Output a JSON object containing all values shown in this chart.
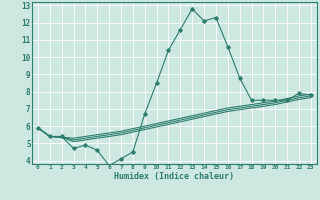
{
  "xlabel": "Humidex (Indice chaleur)",
  "ylabel": "",
  "bg_color": "#cde8e0",
  "grid_color": "#ffffff",
  "line_color": "#2e7d6e",
  "xlim": [
    -0.5,
    23.5
  ],
  "ylim": [
    3.8,
    13.2
  ],
  "xticks": [
    0,
    1,
    2,
    3,
    4,
    5,
    6,
    7,
    8,
    9,
    10,
    11,
    12,
    13,
    14,
    15,
    16,
    17,
    18,
    19,
    20,
    21,
    22,
    23
  ],
  "yticks": [
    4,
    5,
    6,
    7,
    8,
    9,
    10,
    11,
    12,
    13
  ],
  "series": [
    [
      5.9,
      5.4,
      5.4,
      4.7,
      4.9,
      4.6,
      3.7,
      4.1,
      4.5,
      6.7,
      8.5,
      10.4,
      11.6,
      12.8,
      12.1,
      12.3,
      10.6,
      8.8,
      7.5,
      7.5,
      7.5,
      7.5,
      7.9,
      7.8
    ],
    [
      5.9,
      5.4,
      5.35,
      5.2,
      5.3,
      5.4,
      5.5,
      5.6,
      5.75,
      5.9,
      6.05,
      6.2,
      6.35,
      6.5,
      6.65,
      6.8,
      6.95,
      7.05,
      7.15,
      7.25,
      7.35,
      7.5,
      7.65,
      7.75
    ],
    [
      5.9,
      5.4,
      5.35,
      5.1,
      5.2,
      5.3,
      5.4,
      5.5,
      5.65,
      5.8,
      5.95,
      6.1,
      6.25,
      6.4,
      6.55,
      6.7,
      6.85,
      6.95,
      7.05,
      7.15,
      7.25,
      7.4,
      7.55,
      7.65
    ],
    [
      5.9,
      5.4,
      5.35,
      5.3,
      5.4,
      5.5,
      5.6,
      5.7,
      5.85,
      6.0,
      6.15,
      6.3,
      6.45,
      6.6,
      6.75,
      6.9,
      7.05,
      7.15,
      7.25,
      7.35,
      7.45,
      7.6,
      7.75,
      7.85
    ]
  ]
}
